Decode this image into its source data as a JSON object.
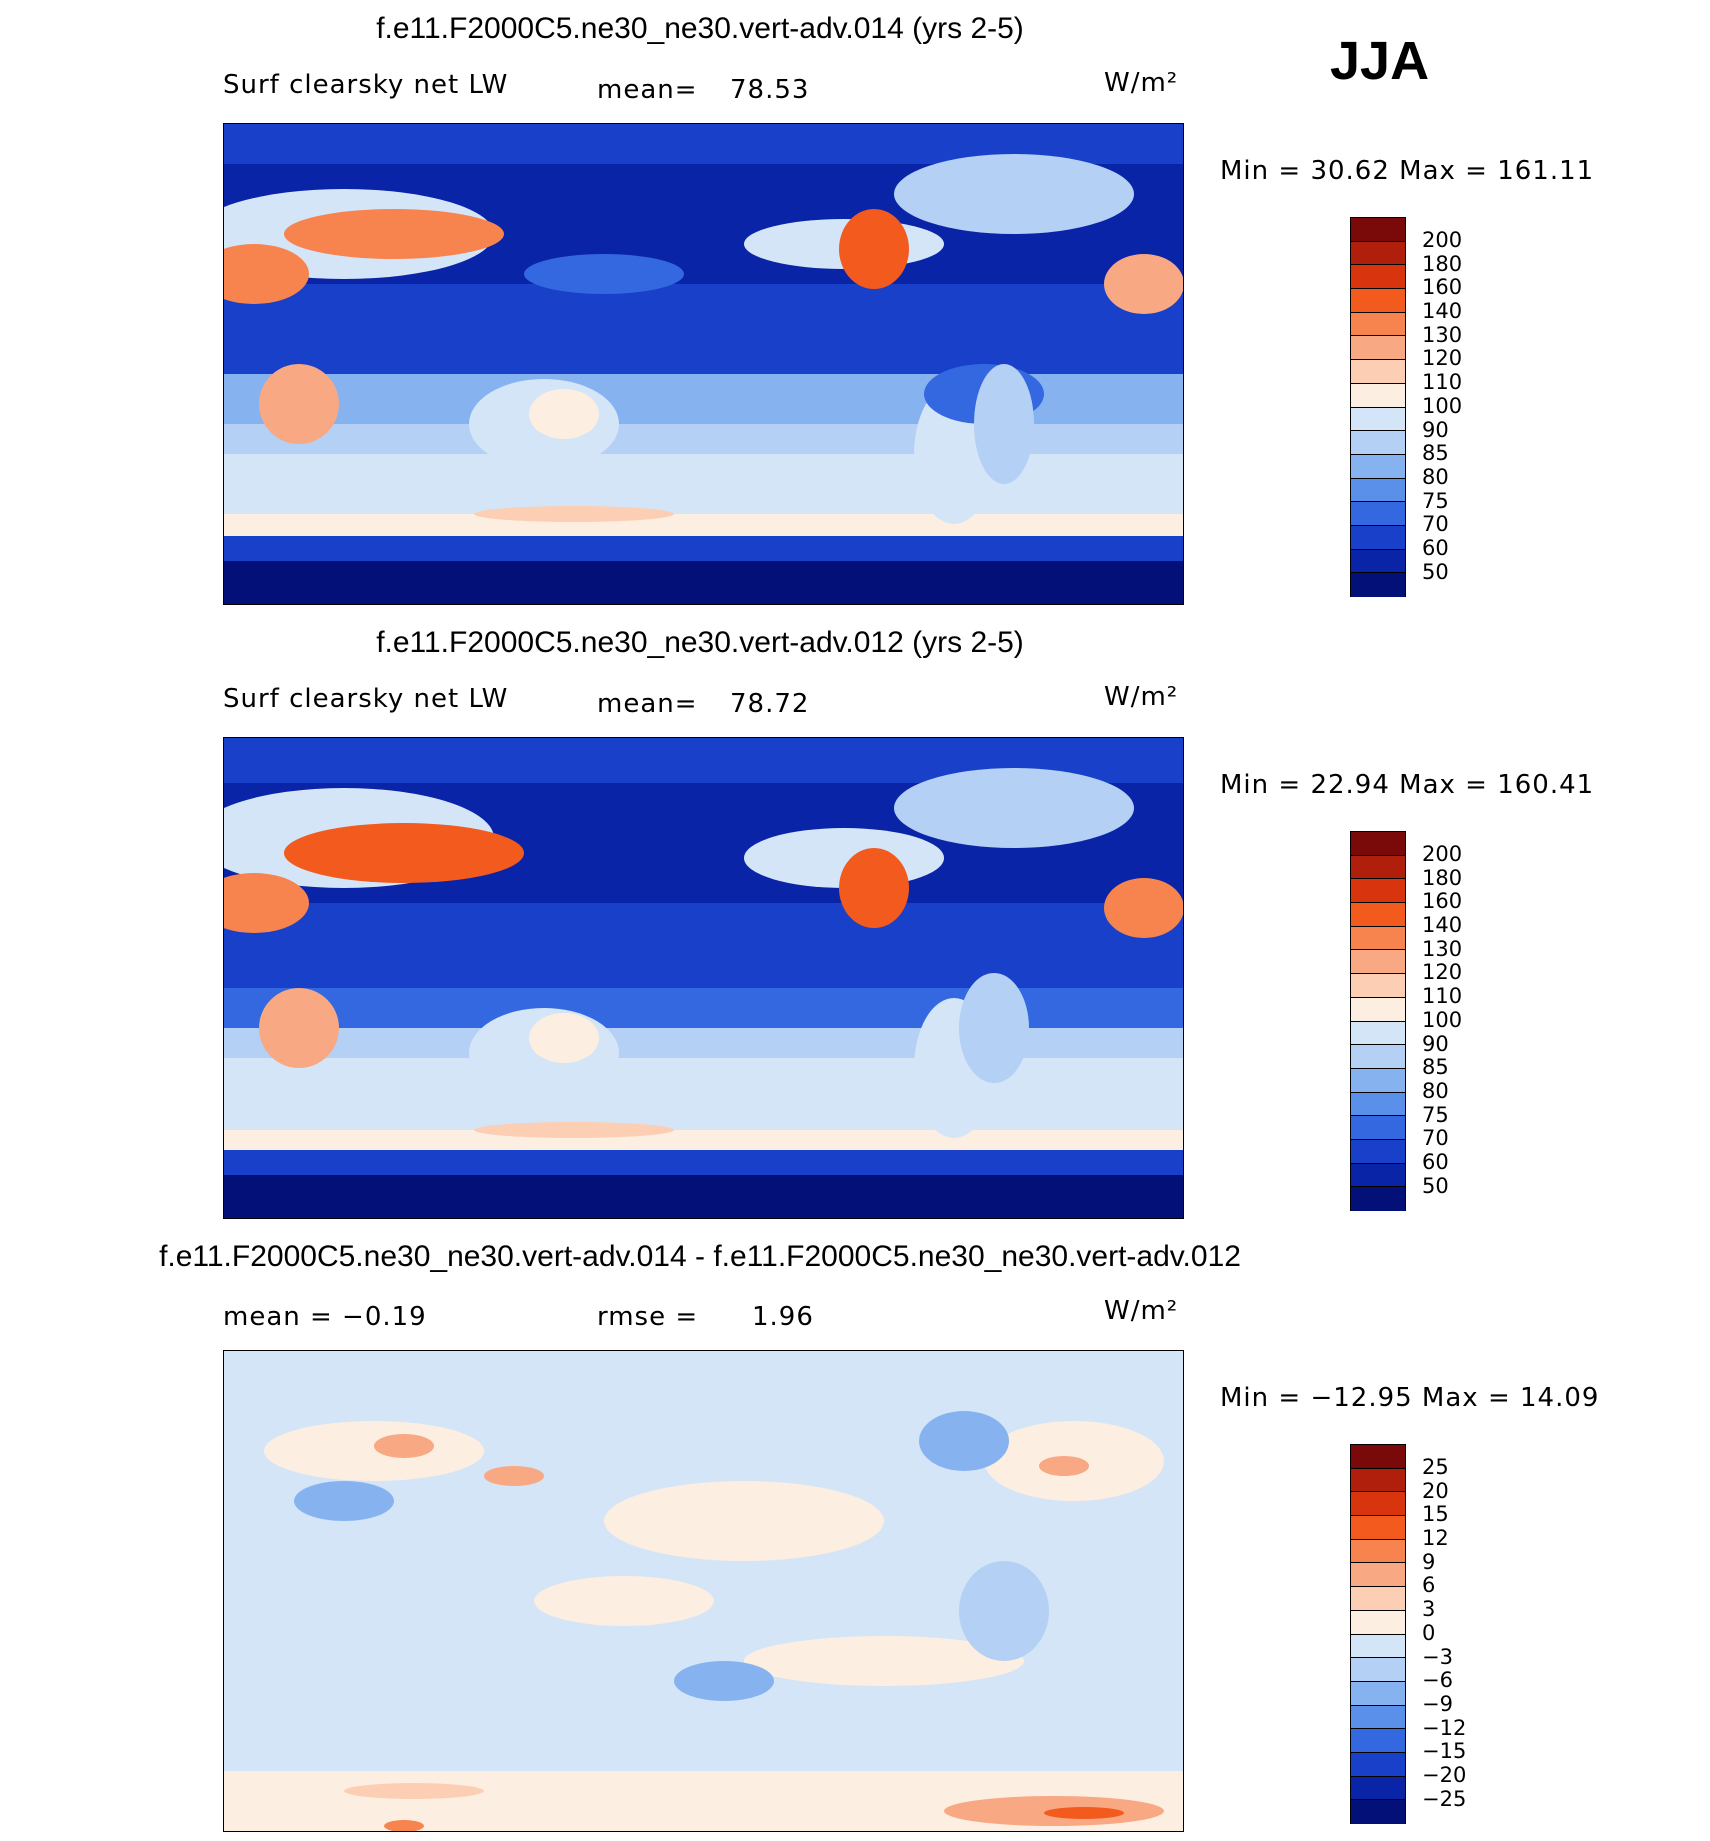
{
  "season": "JJA",
  "panels": [
    {
      "title": "f.e11.F2000C5.ne30_ne30.vert-adv.014 (yrs 2-5)",
      "left_label": "Surf clearsky net LW",
      "mean_label": "mean=",
      "mean_value": "78.53",
      "units": "W/m²",
      "stats": "Min =   30.62  Max =  161.11"
    },
    {
      "title": "f.e11.F2000C5.ne30_ne30.vert-adv.012 (yrs 2-5)",
      "left_label": "Surf clearsky net LW",
      "mean_label": "mean=",
      "mean_value": "78.72",
      "units": "W/m²",
      "stats": "Min =   22.94  Max =  160.41"
    },
    {
      "title": "f.e11.F2000C5.ne30_ne30.vert-adv.014 - f.e11.F2000C5.ne30_ne30.vert-adv.012",
      "left_label": "mean =   −0.19",
      "mean_label": "rmse =",
      "mean_value": "1.96",
      "units": "W/m²",
      "stats": "Min = −12.95  Max =   14.09"
    }
  ],
  "legends": {
    "field": {
      "labels": [
        "200",
        "180",
        "160",
        "140",
        "130",
        "120",
        "110",
        "100",
        "90",
        "85",
        "80",
        "75",
        "70",
        "60",
        "50"
      ],
      "colors": [
        "#7a0a0a",
        "#b01e0c",
        "#d8350f",
        "#f25a1e",
        "#f7844e",
        "#f8a882",
        "#fccfb5",
        "#fdeee2",
        "#d4e5f8",
        "#b4d0f5",
        "#86b3f0",
        "#5a90ea",
        "#3368e0",
        "#1940c8",
        "#0a24a8",
        "#021078"
      ]
    },
    "diff": {
      "labels": [
        "25",
        "20",
        "15",
        "12",
        "9",
        "6",
        "3",
        "0",
        "−3",
        "−6",
        "−9",
        "−12",
        "−15",
        "−20",
        "−25"
      ],
      "colors": [
        "#7a0a0a",
        "#b01e0c",
        "#d8350f",
        "#f25a1e",
        "#f7844e",
        "#f8a882",
        "#fccfb5",
        "#fdeee2",
        "#d4e5f8",
        "#b4d0f5",
        "#86b3f0",
        "#5a90ea",
        "#3368e0",
        "#1940c8",
        "#0a24a8",
        "#021078"
      ]
    }
  }
}
